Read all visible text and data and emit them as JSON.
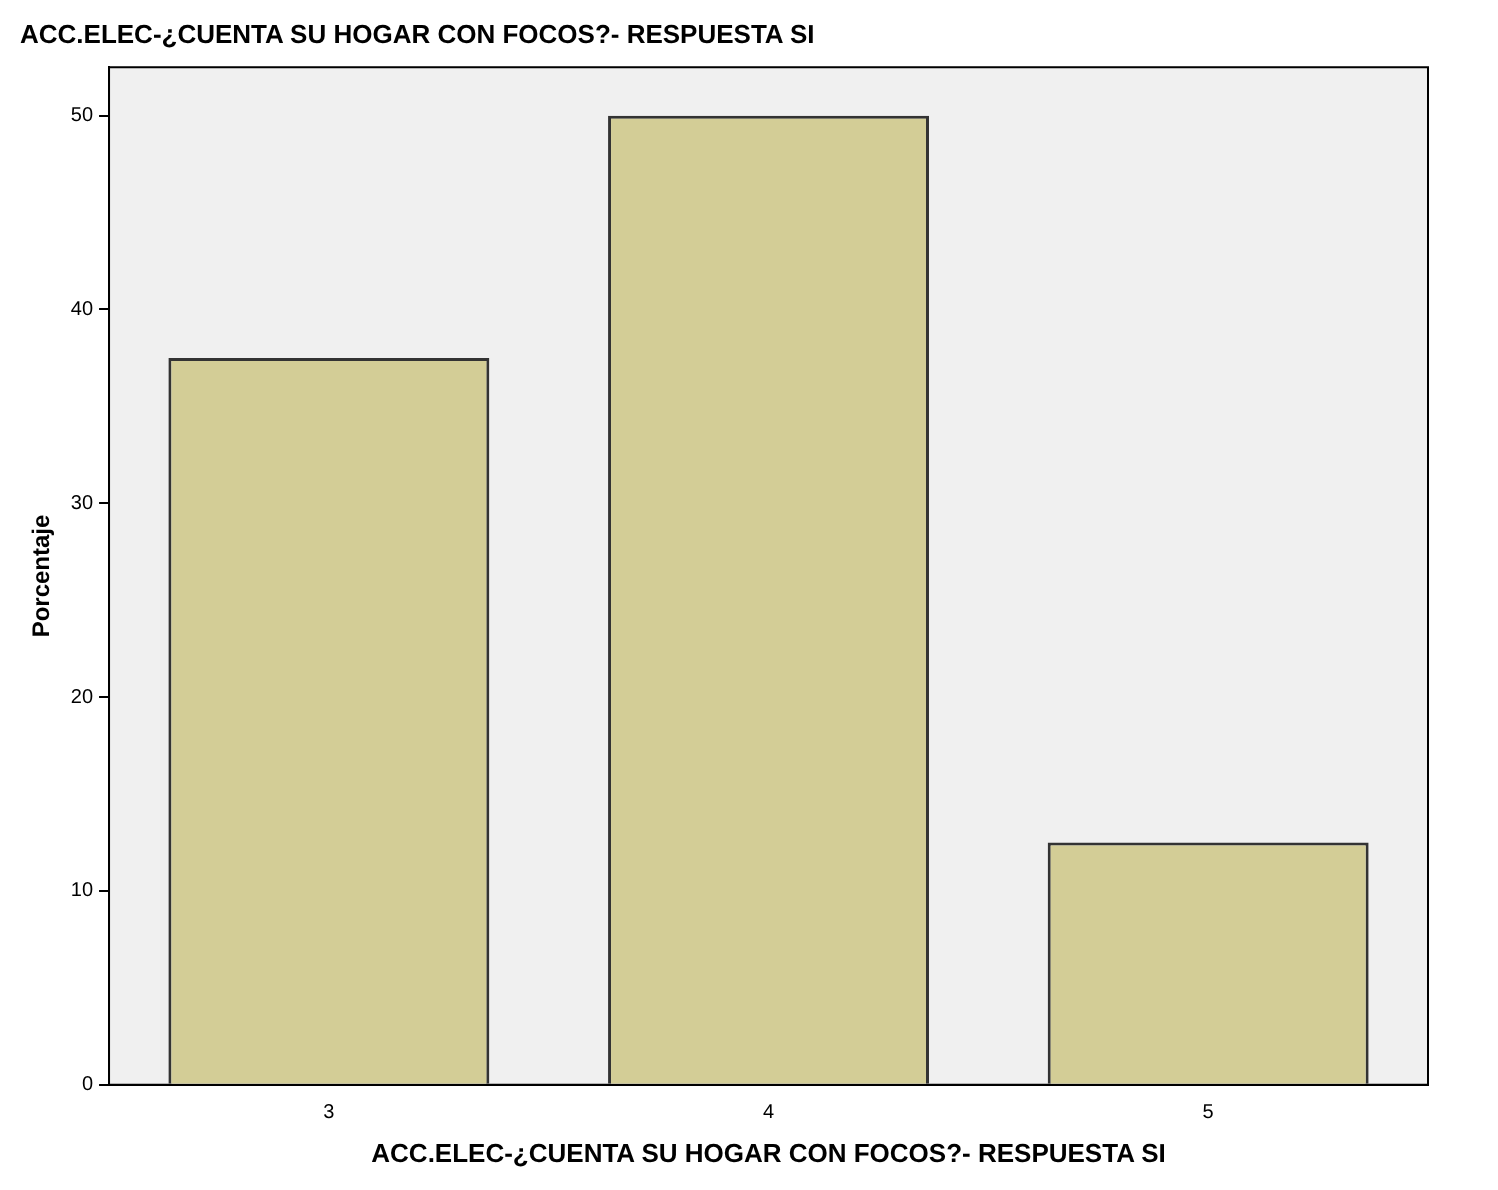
{
  "chart_data": {
    "type": "bar",
    "title": "ACC.ELEC-¿CUENTA SU HOGAR CON FOCOS?- RESPUESTA SI",
    "xlabel": "ACC.ELEC-¿CUENTA SU HOGAR CON FOCOS?- RESPUESTA SI",
    "ylabel": "Porcentaje",
    "categories": [
      "3",
      "4",
      "5"
    ],
    "values": [
      37.5,
      50,
      12.5
    ],
    "color": "#d3cd96",
    "ylim": [
      0,
      52.5
    ],
    "yticks": [
      0,
      10,
      20,
      30,
      40,
      50
    ],
    "grid": false,
    "legend": false
  }
}
